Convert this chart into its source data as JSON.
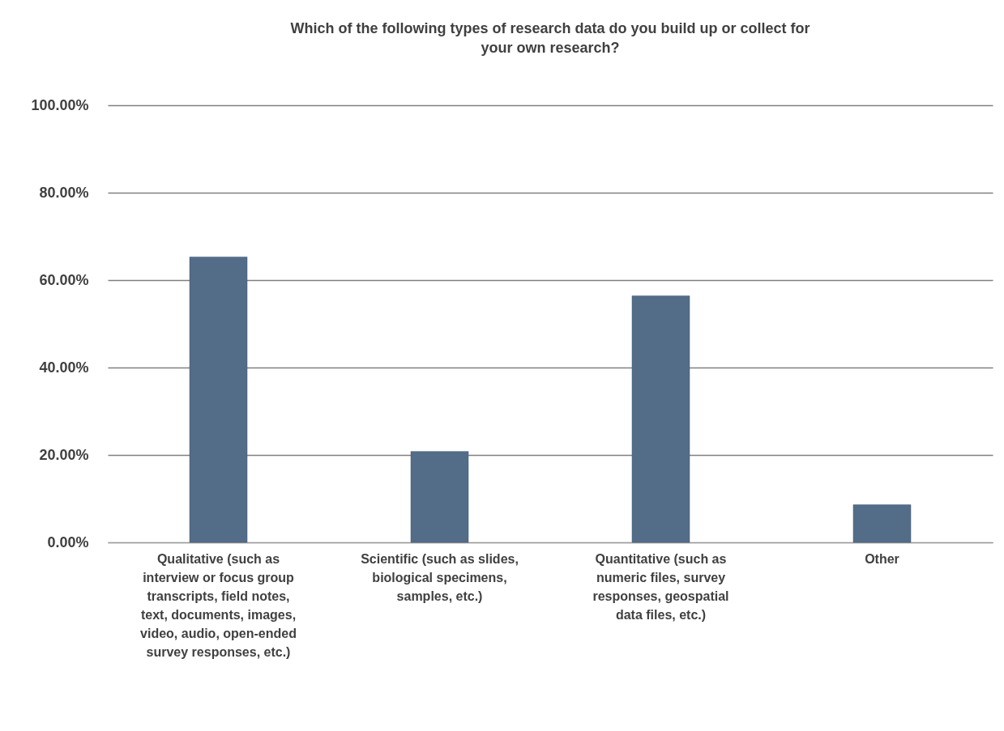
{
  "chart_data": {
    "type": "bar",
    "title": "Which of the following types of research data do you build up or collect for\nyour own research?",
    "categories": [
      "Qualitative (such as\ninterview or focus group\ntranscripts, field notes,\ntext, documents, images,\nvideo, audio, open-ended\nsurvey responses, etc.)",
      "Scientific (such as slides,\nbiological specimens,\nsamples, etc.)",
      "Quantitative (such as\nnumeric files, survey\nresponses, geospatial\ndata files, etc.)",
      "Other"
    ],
    "values": [
      65.3,
      20.8,
      56.4,
      8.6
    ],
    "color": "#536d89",
    "ylim": [
      0,
      100
    ],
    "yticks": [
      {
        "value": 0,
        "label": "0.00%"
      },
      {
        "value": 20,
        "label": "20.00%"
      },
      {
        "value": 40,
        "label": "40.00%"
      },
      {
        "value": 60,
        "label": "60.00%"
      },
      {
        "value": 80,
        "label": "80.00%"
      },
      {
        "value": 100,
        "label": "100.00%"
      }
    ],
    "grid": "y"
  }
}
